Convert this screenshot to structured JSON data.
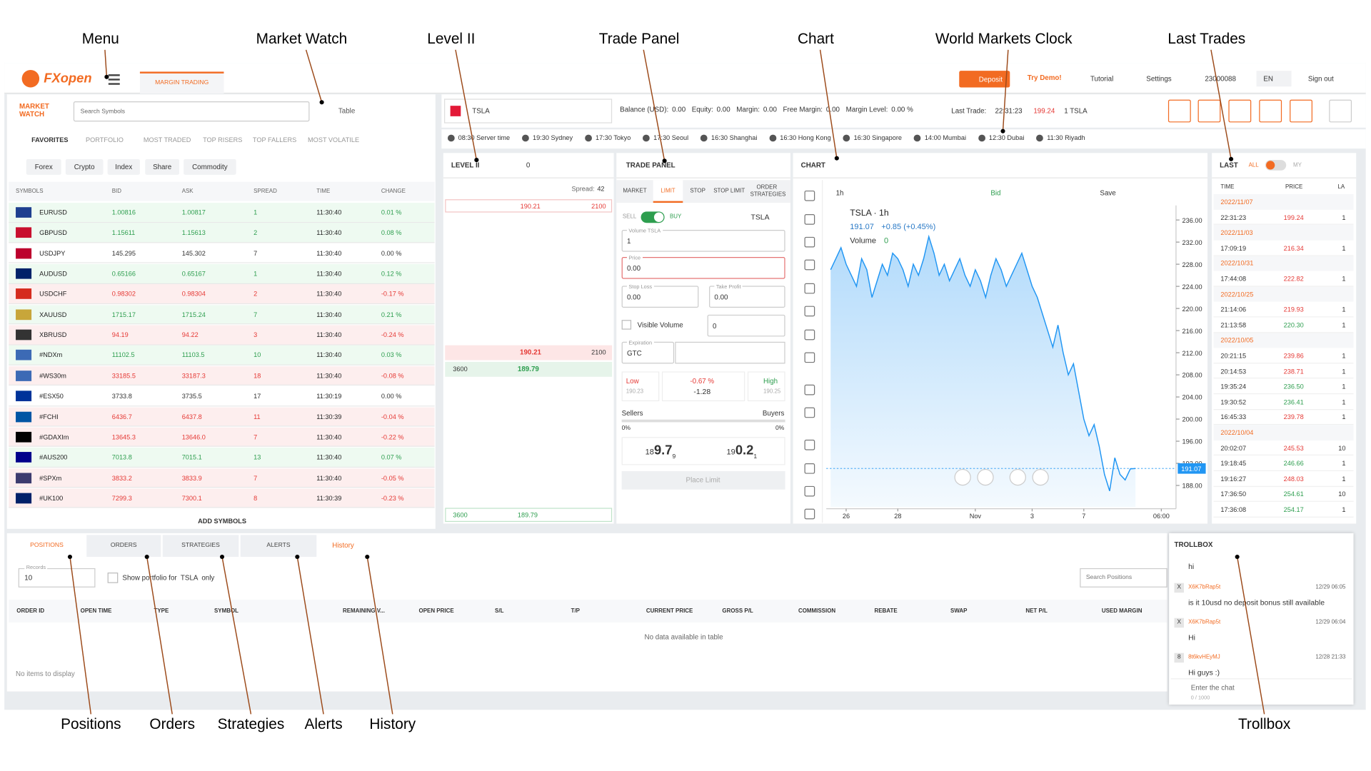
{
  "annotations": {
    "top": [
      "Menu",
      "Market Watch",
      "Level II",
      "Trade Panel",
      "Chart",
      "World Markets Clock",
      "Last Trades"
    ],
    "bottom": [
      "Positions",
      "Orders",
      "Strategies",
      "Alerts",
      "History",
      "Trollbox"
    ]
  },
  "header": {
    "logo": "FXopen",
    "tab": "MARGIN TRADING",
    "deposit": "Deposit",
    "try_demo": "Try Demo!",
    "tutorial": "Tutorial",
    "settings": "Settings",
    "account": "23000088",
    "lang": "EN",
    "sign_out": "Sign out"
  },
  "market_watch": {
    "title": "MARKET WATCH",
    "search": "Search Symbols",
    "view": "Table",
    "tabs": [
      "FAVORITES",
      "PORTFOLIO",
      "MOST TRADED",
      "TOP RISERS",
      "TOP FALLERS",
      "MOST VOLATILE"
    ],
    "filters": [
      "Forex",
      "Crypto",
      "Index",
      "Share",
      "Commodity"
    ],
    "columns": [
      "SYMBOLS",
      "BID",
      "ASK",
      "SPREAD",
      "TIME",
      "CHANGE"
    ],
    "rows": [
      [
        "EURUSD",
        "1.00816",
        "1.00817",
        "1",
        "11:30:40",
        "0.01 %"
      ],
      [
        "GBPUSD",
        "1.15611",
        "1.15613",
        "2",
        "11:30:40",
        "0.08 %"
      ],
      [
        "USDJPY",
        "145.295",
        "145.302",
        "7",
        "11:30:40",
        "0.00 %"
      ],
      [
        "AUDUSD",
        "0.65166",
        "0.65167",
        "1",
        "11:30:40",
        "0.12 %"
      ],
      [
        "USDCHF",
        "0.98302",
        "0.98304",
        "2",
        "11:30:40",
        "-0.17 %"
      ],
      [
        "XAUUSD",
        "1715.17",
        "1715.24",
        "7",
        "11:30:40",
        "0.21 %"
      ],
      [
        "XBRUSD",
        "94.19",
        "94.22",
        "3",
        "11:30:40",
        "-0.24 %"
      ],
      [
        "#NDXm",
        "11102.5",
        "11103.5",
        "10",
        "11:30:40",
        "0.03 %"
      ],
      [
        "#WS30m",
        "33185.5",
        "33187.3",
        "18",
        "11:30:40",
        "-0.08 %"
      ],
      [
        "#ESX50",
        "3733.8",
        "3735.5",
        "17",
        "11:30:19",
        "0.00 %"
      ],
      [
        "#FCHI",
        "6436.7",
        "6437.8",
        "11",
        "11:30:39",
        "-0.04 %"
      ],
      [
        "#GDAXIm",
        "13645.3",
        "13646.0",
        "7",
        "11:30:40",
        "-0.22 %"
      ],
      [
        "#AUS200",
        "7013.8",
        "7015.1",
        "13",
        "11:30:40",
        "0.07 %"
      ],
      [
        "#SPXm",
        "3833.2",
        "3833.9",
        "7",
        "11:30:40",
        "-0.05 %"
      ],
      [
        "#UK100",
        "7299.3",
        "7300.1",
        "8",
        "11:30:39",
        "-0.23 %"
      ]
    ],
    "add": "ADD SYMBOLS"
  },
  "top_bar": {
    "symbol": "TSLA",
    "balance": [
      [
        "Balance (USD):",
        "0.00"
      ],
      [
        "Equity:",
        "0.00"
      ],
      [
        "Margin:",
        "0.00"
      ],
      [
        "Free Margin:",
        "0.00"
      ],
      [
        "Margin Level:",
        "0.00 %"
      ]
    ],
    "last_trade_label": "Last Trade:",
    "last_trade_time": "22:31:23",
    "last_trade_price": "199.24",
    "last_trade_qty": "1 TSLA"
  },
  "clocks": [
    "08:30 Server time",
    "19:30 Sydney",
    "17:30 Tokyo",
    "17:30 Seoul",
    "16:30 Shanghai",
    "16:30 Hong Kong",
    "16:30 Singapore",
    "14:00 Mumbai",
    "12:30 Dubai",
    "11:30 Riyadh"
  ],
  "level2": {
    "title": "LEVEL II",
    "depth": "0",
    "spread_label": "Spread:",
    "spread": "42",
    "ask_top": {
      "price": "190.21",
      "volume": "2100"
    },
    "best_ask": {
      "price": "190.21",
      "volume": "2100"
    },
    "best_bid": {
      "volume": "3600",
      "price": "189.79"
    },
    "bid_bottom": {
      "volume": "3600",
      "price": "189.79"
    }
  },
  "trade_panel": {
    "title": "TRADE PANEL",
    "tabs": [
      "MARKET",
      "LIMIT",
      "STOP",
      "STOP LIMIT",
      "ORDER STRATEGIES"
    ],
    "sell": "SELL",
    "buy": "BUY",
    "symbol": "TSLA",
    "volume_label": "Volume TSLA",
    "volume": "1",
    "price_label": "Price",
    "price": "0.00",
    "sl_label": "Stop Loss",
    "sl": "0.00",
    "tp_label": "Take Profit",
    "tp": "0.00",
    "visible_label": "Visible Volume",
    "visible": "0",
    "exp_label": "Expiration",
    "exp": "GTC",
    "low_label": "Low",
    "low": "190.23",
    "change_pct": "-0.67 %",
    "change": "-1.28",
    "high_label": "High",
    "high": "190.25",
    "sellers": "Sellers",
    "buyers": "Buyers",
    "sellers_pct": "0%",
    "buyers_pct": "0%",
    "sell_quote": [
      "18",
      "9.7",
      "9"
    ],
    "buy_quote": [
      "19",
      "0.2",
      "1"
    ],
    "place": "Place Limit"
  },
  "chart": {
    "type": "area",
    "title": "CHART",
    "interval": "1h",
    "bid": "Bid",
    "save": "Save",
    "legend": "TSLA · 1h",
    "last": "191.07",
    "last_change": "+0.85 (+0.45%)",
    "volume_label": "Volume",
    "volume": "0",
    "color": "#2196f3",
    "values": [
      227,
      229,
      231,
      228,
      226,
      224,
      229,
      227,
      222,
      225,
      228,
      226,
      230,
      229,
      227,
      224,
      228,
      226,
      229,
      233,
      230,
      226,
      228,
      225,
      227,
      229,
      226,
      224,
      227,
      225,
      222,
      226,
      229,
      227,
      224,
      226,
      228,
      230,
      227,
      224,
      222,
      219,
      216,
      213,
      217,
      212,
      208,
      210,
      205,
      200,
      197,
      199,
      195,
      190,
      187,
      193,
      190,
      189,
      191,
      191.07
    ],
    "xlim": [
      0,
      66
    ],
    "xticks": [
      {
        "value": 3,
        "label": "26"
      },
      {
        "value": 13,
        "label": "28"
      },
      {
        "value": 28,
        "label": "Nov"
      },
      {
        "value": 39,
        "label": "3"
      },
      {
        "value": 49,
        "label": "7"
      },
      {
        "value": 64,
        "label": "06:00"
      }
    ],
    "ylim": [
      186,
      238
    ],
    "yticks": [
      {
        "value": 188,
        "label": "188.00"
      },
      {
        "value": 192,
        "label": "192.00"
      },
      {
        "value": 196,
        "label": "196.00"
      },
      {
        "value": 200,
        "label": "200.00"
      },
      {
        "value": 204,
        "label": "204.00"
      },
      {
        "value": 208,
        "label": "208.00"
      },
      {
        "value": 212,
        "label": "212.00"
      },
      {
        "value": 216,
        "label": "216.00"
      },
      {
        "value": 220,
        "label": "220.00"
      },
      {
        "value": 224,
        "label": "224.00"
      },
      {
        "value": 228,
        "label": "228.00"
      },
      {
        "value": 232,
        "label": "232.00"
      },
      {
        "value": 236,
        "label": "236.00"
      }
    ]
  },
  "last_trades": {
    "title": "LAST",
    "all": "ALL",
    "my": "MY",
    "columns": [
      "TIME",
      "PRICE",
      "LA"
    ],
    "groups": [
      {
        "date": "2022/11/07",
        "trades": [
          {
            "time": "22:31:23",
            "price": "199.24",
            "qty": "1",
            "color": "#e53935"
          }
        ]
      },
      {
        "date": "2022/11/03",
        "trades": [
          {
            "time": "17:09:19",
            "price": "216.34",
            "qty": "1",
            "color": "#e53935"
          }
        ]
      },
      {
        "date": "2022/10/31",
        "trades": [
          {
            "time": "17:44:08",
            "price": "222.82",
            "qty": "1",
            "color": "#e53935"
          }
        ]
      },
      {
        "date": "2022/10/25",
        "trades": [
          {
            "time": "21:14:06",
            "price": "219.93",
            "qty": "1",
            "color": "#e53935"
          },
          {
            "time": "21:13:58",
            "price": "220.30",
            "qty": "1",
            "color": "#2e9e4f"
          }
        ]
      },
      {
        "date": "2022/10/05",
        "trades": [
          {
            "time": "20:21:15",
            "price": "239.86",
            "qty": "1",
            "color": "#e53935"
          },
          {
            "time": "20:14:53",
            "price": "238.71",
            "qty": "1",
            "color": "#e53935"
          },
          {
            "time": "19:35:24",
            "price": "236.50",
            "qty": "1",
            "color": "#2e9e4f"
          },
          {
            "time": "19:30:52",
            "price": "236.41",
            "qty": "1",
            "color": "#2e9e4f"
          },
          {
            "time": "16:45:33",
            "price": "239.78",
            "qty": "1",
            "color": "#e53935"
          }
        ]
      },
      {
        "date": "2022/10/04",
        "trades": [
          {
            "time": "20:02:07",
            "price": "245.53",
            "qty": "10",
            "color": "#e53935"
          },
          {
            "time": "19:18:45",
            "price": "246.66",
            "qty": "1",
            "color": "#2e9e4f"
          },
          {
            "time": "19:16:27",
            "price": "248.03",
            "qty": "1",
            "color": "#e53935"
          },
          {
            "time": "17:36:50",
            "price": "254.61",
            "qty": "10",
            "color": "#2e9e4f"
          },
          {
            "time": "17:36:08",
            "price": "254.17",
            "qty": "1",
            "color": "#2e9e4f"
          }
        ]
      }
    ]
  },
  "bottom": {
    "tabs": [
      "POSITIONS",
      "ORDERS",
      "STRATEGIES",
      "ALERTS"
    ],
    "history": "History",
    "records_label": "Records",
    "records": "10",
    "show_portfolio": "Show portfolio for  TSLA  only",
    "search": "Search Positions",
    "columns": [
      "ORDER ID",
      "OPEN TIME",
      "TYPE",
      "SYMBOL",
      "REMAINING V...",
      "OPEN PRICE",
      "S/L",
      "T/P",
      "CURRENT PRICE",
      "GROSS P/L",
      "COMMISSION",
      "REBATE",
      "SWAP",
      "NET P/L",
      "USED MARGIN"
    ],
    "empty": "No data available in table",
    "no_items": "No items to display"
  },
  "trollbox": {
    "title": "TROLLBOX",
    "first": "hi",
    "messages": [
      {
        "avatar": "X",
        "user": "X6K7bRap5t",
        "time": "12/29 06:05",
        "text": "is it 10usd no deposit bonus still available"
      },
      {
        "avatar": "X",
        "user": "X6K7bRap5t",
        "time": "12/29 06:04",
        "text": "Hi"
      },
      {
        "avatar": "8",
        "user": "8t6kvHEyMJ",
        "time": "12/28 21:33",
        "text": "Hi guys :)"
      }
    ],
    "placeholder": "Enter the chat",
    "counter": "0 / 1000"
  }
}
